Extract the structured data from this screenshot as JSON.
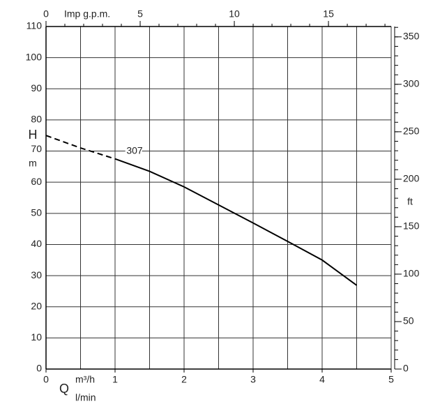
{
  "chart_data": {
    "type": "line",
    "series": [
      {
        "name": "307",
        "color": "#000000",
        "segments": [
          {
            "style": "dashed",
            "x": [
              0,
              0.5,
              1
            ],
            "values": [
              75,
              71,
              67.5
            ]
          },
          {
            "style": "solid",
            "x": [
              1,
              1.5,
              2,
              2.5,
              3,
              3.5,
              4,
              4.5
            ],
            "values": [
              67.5,
              63.5,
              58.5,
              52.7,
              46.9,
              41,
              35,
              26.9
            ]
          }
        ]
      }
    ],
    "xlim": [
      0,
      5
    ],
    "xticks": [
      0,
      1,
      2,
      3,
      4,
      5
    ],
    "xgrid": [
      0,
      0.5,
      1,
      1.5,
      2,
      2.5,
      3,
      3.5,
      4,
      4.5,
      5
    ],
    "xlabel": "m³/h",
    "xlabel2": "l/min",
    "xsymbol": "Q",
    "x2lim": [
      0,
      18.33
    ],
    "x2ticks": [
      0,
      5,
      10,
      15
    ],
    "x2minor": [
      0,
      1,
      2,
      3,
      4,
      5,
      6,
      7,
      8,
      9,
      10,
      11,
      12,
      13,
      14,
      15,
      16,
      17,
      18
    ],
    "x2label": "Imp g.p.m.",
    "ylim": [
      0,
      110
    ],
    "yticks": [
      0,
      10,
      20,
      30,
      40,
      50,
      60,
      70,
      80,
      90,
      100,
      110
    ],
    "ysymbol": "H",
    "ylabel": "m",
    "y2lim": [
      0,
      360.9
    ],
    "y2ticks": [
      0,
      50,
      100,
      150,
      200,
      250,
      300,
      350
    ],
    "y2minor": [
      0,
      10,
      20,
      30,
      40,
      50,
      60,
      70,
      80,
      90,
      100,
      110,
      120,
      130,
      140,
      150,
      160,
      170,
      180,
      190,
      200,
      210,
      220,
      230,
      240,
      250,
      260,
      270,
      280,
      290,
      300,
      310,
      320,
      330,
      340,
      350,
      360
    ],
    "y2label": "ft",
    "grid": true
  }
}
